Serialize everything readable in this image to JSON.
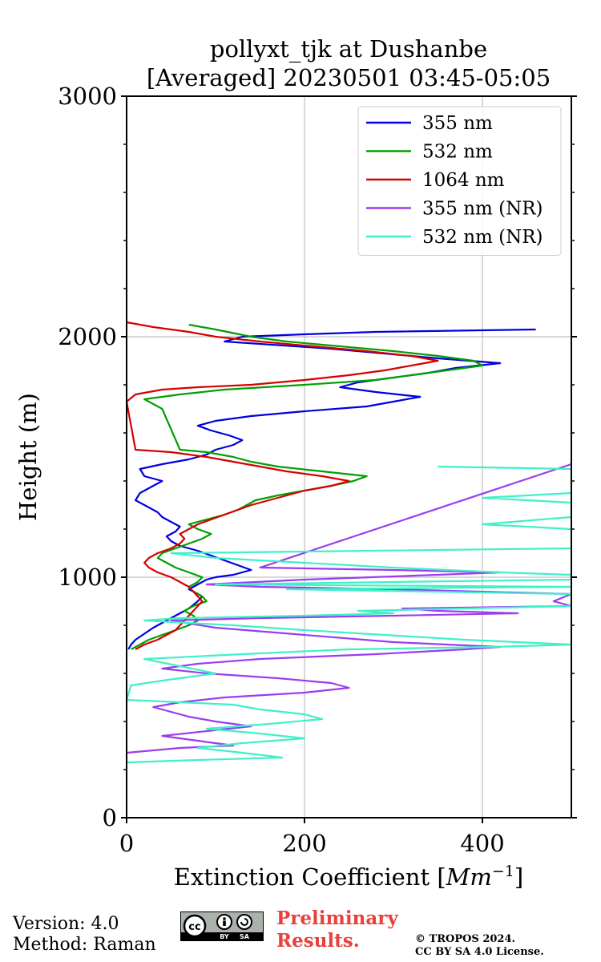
{
  "chart_data": {
    "type": "line",
    "title_line1": "pollyxt_tjk at Dushanbe",
    "title_line2": "[Averaged] 20230501 03:45-05:05",
    "xlabel": "Extinction Coefficient [",
    "xlabel_unit": "Mm",
    "xlabel_exp": "−1",
    "xlabel_end": "]",
    "ylabel": "Height (m)",
    "xlim": [
      0,
      500
    ],
    "ylim": [
      0,
      3000
    ],
    "xticks": [
      0,
      200,
      400
    ],
    "yticks": [
      0,
      1000,
      2000,
      3000
    ],
    "x_tick_labels": [
      "0",
      "200",
      "400"
    ],
    "y_tick_labels": [
      "0",
      "1000",
      "2000",
      "3000"
    ],
    "grid": true,
    "legend_position": "top-right",
    "series": [
      {
        "name": "355 nm",
        "color": "#0000e0",
        "points": [
          [
            2,
            700
          ],
          [
            5,
            720
          ],
          [
            10,
            740
          ],
          [
            18,
            760
          ],
          [
            30,
            790
          ],
          [
            45,
            820
          ],
          [
            60,
            850
          ],
          [
            70,
            870
          ],
          [
            80,
            900
          ],
          [
            85,
            920
          ],
          [
            78,
            935
          ],
          [
            70,
            950
          ],
          [
            80,
            970
          ],
          [
            90,
            990
          ],
          [
            100,
            1000
          ],
          [
            120,
            1010
          ],
          [
            140,
            1030
          ],
          [
            125,
            1050
          ],
          [
            110,
            1070
          ],
          [
            95,
            1090
          ],
          [
            80,
            1110
          ],
          [
            60,
            1130
          ],
          [
            50,
            1150
          ],
          [
            45,
            1170
          ],
          [
            55,
            1190
          ],
          [
            60,
            1210
          ],
          [
            50,
            1230
          ],
          [
            40,
            1250
          ],
          [
            35,
            1270
          ],
          [
            25,
            1290
          ],
          [
            20,
            1300
          ],
          [
            10,
            1320
          ],
          [
            15,
            1350
          ],
          [
            30,
            1380
          ],
          [
            40,
            1400
          ],
          [
            20,
            1420
          ],
          [
            15,
            1450
          ],
          [
            40,
            1470
          ],
          [
            70,
            1490
          ],
          [
            90,
            1510
          ],
          [
            100,
            1530
          ],
          [
            120,
            1550
          ],
          [
            130,
            1570
          ],
          [
            115,
            1590
          ],
          [
            95,
            1610
          ],
          [
            80,
            1630
          ],
          [
            100,
            1650
          ],
          [
            140,
            1670
          ],
          [
            200,
            1690
          ],
          [
            270,
            1710
          ],
          [
            300,
            1730
          ],
          [
            330,
            1750
          ],
          [
            280,
            1770
          ],
          [
            240,
            1790
          ],
          [
            260,
            1810
          ],
          [
            300,
            1830
          ],
          [
            340,
            1850
          ],
          [
            370,
            1870
          ],
          [
            420,
            1890
          ],
          [
            350,
            1910
          ],
          [
            290,
            1930
          ],
          [
            230,
            1950
          ],
          [
            150,
            1970
          ],
          [
            110,
            1980
          ],
          [
            130,
            2000
          ],
          [
            200,
            2010
          ],
          [
            280,
            2020
          ],
          [
            460,
            2030
          ]
        ]
      },
      {
        "name": "532 nm",
        "color": "#00a000",
        "points": [
          [
            5,
            700
          ],
          [
            15,
            720
          ],
          [
            25,
            740
          ],
          [
            40,
            760
          ],
          [
            55,
            780
          ],
          [
            70,
            800
          ],
          [
            80,
            820
          ],
          [
            75,
            840
          ],
          [
            65,
            860
          ],
          [
            75,
            880
          ],
          [
            90,
            900
          ],
          [
            85,
            920
          ],
          [
            75,
            940
          ],
          [
            70,
            960
          ],
          [
            80,
            980
          ],
          [
            85,
            1000
          ],
          [
            70,
            1020
          ],
          [
            55,
            1040
          ],
          [
            45,
            1060
          ],
          [
            35,
            1080
          ],
          [
            40,
            1100
          ],
          [
            55,
            1120
          ],
          [
            70,
            1140
          ],
          [
            85,
            1160
          ],
          [
            95,
            1180
          ],
          [
            80,
            1200
          ],
          [
            70,
            1220
          ],
          [
            90,
            1240
          ],
          [
            110,
            1260
          ],
          [
            125,
            1280
          ],
          [
            135,
            1300
          ],
          [
            145,
            1320
          ],
          [
            170,
            1340
          ],
          [
            200,
            1360
          ],
          [
            230,
            1380
          ],
          [
            255,
            1400
          ],
          [
            270,
            1420
          ],
          [
            220,
            1440
          ],
          [
            170,
            1460
          ],
          [
            140,
            1480
          ],
          [
            120,
            1500
          ],
          [
            90,
            1520
          ],
          [
            60,
            1530
          ],
          [
            40,
            1700
          ],
          [
            20,
            1740
          ],
          [
            60,
            1760
          ],
          [
            110,
            1780
          ],
          [
            200,
            1800
          ],
          [
            280,
            1820
          ],
          [
            320,
            1840
          ],
          [
            360,
            1860
          ],
          [
            400,
            1880
          ],
          [
            390,
            1900
          ],
          [
            350,
            1920
          ],
          [
            300,
            1940
          ],
          [
            240,
            1960
          ],
          [
            180,
            1980
          ],
          [
            140,
            2000
          ],
          [
            100,
            2030
          ],
          [
            70,
            2050
          ]
        ]
      },
      {
        "name": "1064 nm",
        "color": "#d60000",
        "points": [
          [
            10,
            700
          ],
          [
            20,
            720
          ],
          [
            35,
            740
          ],
          [
            45,
            760
          ],
          [
            55,
            780
          ],
          [
            60,
            800
          ],
          [
            65,
            820
          ],
          [
            70,
            840
          ],
          [
            75,
            860
          ],
          [
            80,
            880
          ],
          [
            85,
            900
          ],
          [
            80,
            920
          ],
          [
            75,
            940
          ],
          [
            70,
            960
          ],
          [
            60,
            980
          ],
          [
            50,
            1000
          ],
          [
            35,
            1020
          ],
          [
            25,
            1040
          ],
          [
            20,
            1060
          ],
          [
            25,
            1080
          ],
          [
            35,
            1100
          ],
          [
            50,
            1120
          ],
          [
            60,
            1140
          ],
          [
            65,
            1160
          ],
          [
            60,
            1180
          ],
          [
            70,
            1200
          ],
          [
            80,
            1220
          ],
          [
            95,
            1240
          ],
          [
            110,
            1260
          ],
          [
            125,
            1280
          ],
          [
            140,
            1300
          ],
          [
            160,
            1320
          ],
          [
            180,
            1340
          ],
          [
            200,
            1360
          ],
          [
            230,
            1380
          ],
          [
            250,
            1400
          ],
          [
            220,
            1420
          ],
          [
            180,
            1440
          ],
          [
            150,
            1460
          ],
          [
            120,
            1480
          ],
          [
            90,
            1500
          ],
          [
            50,
            1520
          ],
          [
            10,
            1530
          ],
          [
            0,
            1730
          ],
          [
            10,
            1760
          ],
          [
            40,
            1780
          ],
          [
            80,
            1790
          ],
          [
            140,
            1800
          ],
          [
            200,
            1820
          ],
          [
            250,
            1840
          ],
          [
            290,
            1860
          ],
          [
            320,
            1880
          ],
          [
            350,
            1900
          ],
          [
            320,
            1920
          ],
          [
            270,
            1940
          ],
          [
            210,
            1960
          ],
          [
            150,
            1980
          ],
          [
            100,
            2000
          ],
          [
            70,
            2020
          ],
          [
            30,
            2040
          ],
          [
            0,
            2060
          ]
        ]
      },
      {
        "name": "355 nm (NR)",
        "color": "#9b3cf0",
        "points": [
          [
            0,
            270
          ],
          [
            60,
            290
          ],
          [
            120,
            300
          ],
          [
            80,
            320
          ],
          [
            40,
            340
          ],
          [
            90,
            360
          ],
          [
            140,
            380
          ],
          [
            100,
            400
          ],
          [
            70,
            420
          ],
          [
            50,
            440
          ],
          [
            30,
            460
          ],
          [
            60,
            480
          ],
          [
            110,
            500
          ],
          [
            200,
            520
          ],
          [
            250,
            540
          ],
          [
            230,
            560
          ],
          [
            170,
            580
          ],
          [
            90,
            600
          ],
          [
            40,
            620
          ],
          [
            80,
            640
          ],
          [
            150,
            660
          ],
          [
            280,
            680
          ],
          [
            380,
            700
          ],
          [
            420,
            710
          ],
          [
            300,
            730
          ],
          [
            200,
            760
          ],
          [
            100,
            790
          ],
          [
            50,
            820
          ],
          [
            150,
            830
          ],
          [
            300,
            840
          ],
          [
            440,
            850
          ],
          [
            350,
            860
          ],
          [
            310,
            870
          ],
          [
            500,
            880
          ],
          [
            480,
            900
          ],
          [
            500,
            930
          ],
          [
            300,
            950
          ],
          [
            150,
            960
          ],
          [
            90,
            970
          ],
          [
            200,
            990
          ],
          [
            350,
            1010
          ],
          [
            420,
            1020
          ],
          [
            300,
            1030
          ],
          [
            150,
            1040
          ],
          [
            500,
            1470
          ],
          [
            500,
            1480
          ]
        ]
      },
      {
        "name": "532 nm (NR)",
        "color": "#40f0c8",
        "points": [
          [
            0,
            230
          ],
          [
            80,
            240
          ],
          [
            175,
            250
          ],
          [
            130,
            270
          ],
          [
            80,
            290
          ],
          [
            130,
            310
          ],
          [
            200,
            330
          ],
          [
            150,
            350
          ],
          [
            90,
            370
          ],
          [
            160,
            390
          ],
          [
            220,
            410
          ],
          [
            200,
            430
          ],
          [
            150,
            450
          ],
          [
            120,
            470
          ],
          [
            0,
            490
          ],
          [
            5,
            550
          ],
          [
            40,
            570
          ],
          [
            100,
            600
          ],
          [
            60,
            630
          ],
          [
            20,
            660
          ],
          [
            130,
            680
          ],
          [
            250,
            700
          ],
          [
            410,
            710
          ],
          [
            500,
            720
          ],
          [
            440,
            730
          ],
          [
            380,
            740
          ],
          [
            290,
            760
          ],
          [
            200,
            780
          ],
          [
            120,
            800
          ],
          [
            20,
            820
          ],
          [
            60,
            830
          ],
          [
            200,
            840
          ],
          [
            300,
            850
          ],
          [
            260,
            860
          ],
          [
            500,
            880
          ],
          [
            500,
            900
          ],
          [
            500,
            930
          ],
          [
            180,
            950
          ],
          [
            500,
            960
          ],
          [
            100,
            970
          ],
          [
            500,
            990
          ],
          [
            500,
            1010
          ],
          [
            420,
            1020
          ],
          [
            300,
            1040
          ],
          [
            200,
            1060
          ],
          [
            100,
            1080
          ],
          [
            50,
            1100
          ],
          [
            500,
            1120
          ],
          [
            500,
            1200
          ],
          [
            400,
            1220
          ],
          [
            500,
            1250
          ],
          [
            500,
            1280
          ],
          [
            500,
            1310
          ],
          [
            400,
            1330
          ],
          [
            500,
            1350
          ],
          [
            500,
            1400
          ],
          [
            500,
            1450
          ],
          [
            350,
            1460
          ]
        ]
      }
    ]
  },
  "footer": {
    "version": "Version: 4.0",
    "method": "Method: Raman",
    "preliminary_line1": "Preliminary",
    "preliminary_line2": "Results.",
    "copyright_line1": "© TROPOS 2024.",
    "copyright_line2": "CC BY SA 4.0 License."
  },
  "license_badge": {
    "icon": "cc-by-sa-icon",
    "cc": "cc",
    "by": "BY",
    "sa": "SA"
  }
}
